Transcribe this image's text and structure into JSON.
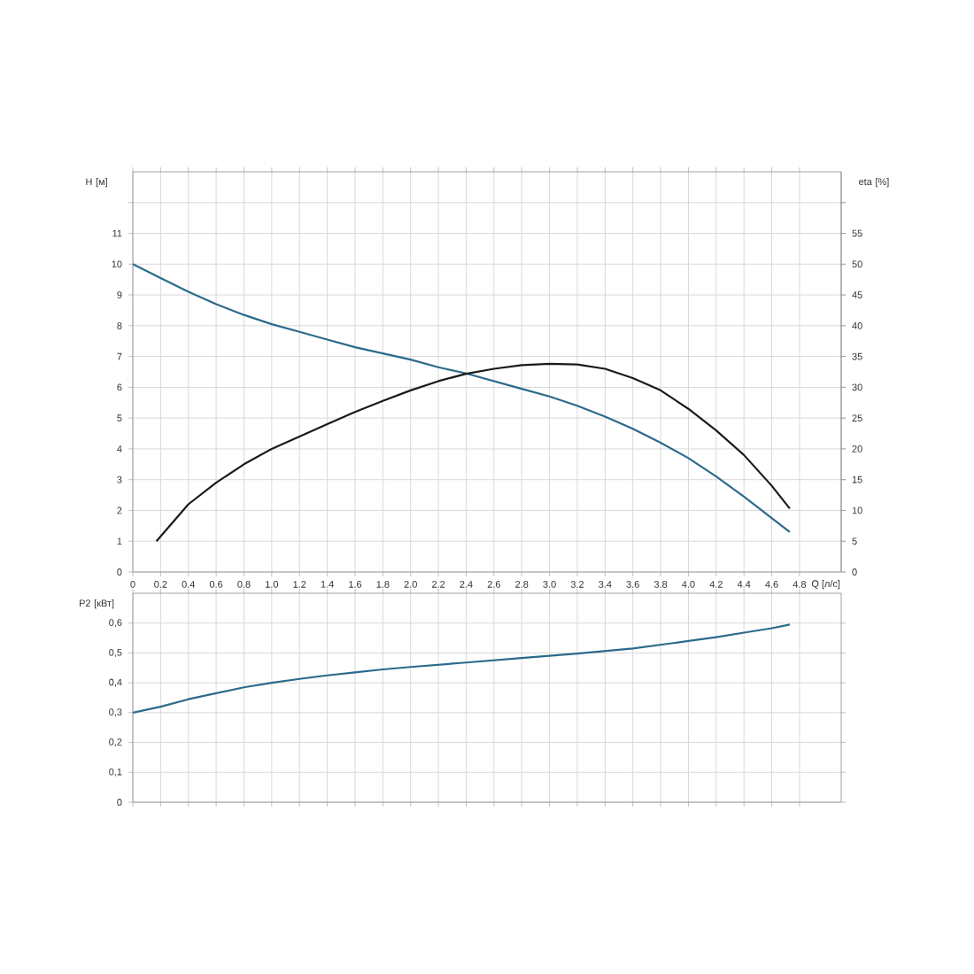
{
  "chart_data": [
    {
      "type": "line",
      "ylabel": "H [м]",
      "y2label": "eta [%]",
      "xlabel": "Q [л/с]",
      "grid": true,
      "xlim": [
        0,
        5.1
      ],
      "xticks": [
        {
          "value": 0,
          "label": "0"
        },
        0.2,
        0.4,
        0.6,
        0.8,
        {
          "value": 1,
          "label": "1.0"
        },
        1.2,
        1.4,
        1.6,
        1.8,
        {
          "value": 2,
          "label": "2.0"
        },
        2.2,
        2.4,
        2.6,
        2.8,
        {
          "value": 3,
          "label": "3.0"
        },
        3.2,
        3.4,
        3.6,
        3.8,
        {
          "value": 4,
          "label": "4.0"
        },
        4.2,
        4.4,
        4.6,
        4.8
      ],
      "ylim": [
        0,
        13
      ],
      "yticks": [
        0,
        1,
        2,
        3,
        4,
        5,
        6,
        7,
        8,
        9,
        10,
        11,
        {
          "value": 12,
          "label": null
        }
      ],
      "y2lim": [
        0,
        65
      ],
      "y2ticks": [
        0,
        5,
        10,
        15,
        20,
        25,
        30,
        35,
        40,
        45,
        50,
        55,
        {
          "value": 60,
          "label": null
        }
      ],
      "series": [
        {
          "color": "#2b6a8c",
          "x": [
            0,
            0.2,
            0.4,
            0.6,
            0.8,
            1.0,
            1.2,
            1.4,
            1.6,
            1.8,
            2.0,
            2.2,
            2.4,
            2.6,
            2.8,
            3.0,
            3.2,
            3.4,
            3.6,
            3.8,
            4.0,
            4.2,
            4.4,
            4.6,
            4.73
          ],
          "values": [
            10,
            9.55,
            9.1,
            8.7,
            8.35,
            8.05,
            7.8,
            7.55,
            7.3,
            7.1,
            6.9,
            6.65,
            6.45,
            6.2,
            5.95,
            5.7,
            5.4,
            5.05,
            4.65,
            4.2,
            3.7,
            3.1,
            2.45,
            1.75,
            1.3
          ]
        },
        {
          "color": "#1a1a1a",
          "axis": "y2",
          "x": [
            0.17,
            0.4,
            0.6,
            0.8,
            1.0,
            1.2,
            1.4,
            1.6,
            1.8,
            2.0,
            2.2,
            2.4,
            2.6,
            2.8,
            3.0,
            3.2,
            3.4,
            3.6,
            3.8,
            4.0,
            4.2,
            4.4,
            4.6,
            4.73
          ],
          "values": [
            5,
            11,
            14.5,
            17.5,
            20,
            22,
            24,
            26,
            27.8,
            29.5,
            31,
            32.2,
            33,
            33.6,
            33.8,
            33.7,
            33,
            31.5,
            29.5,
            26.5,
            23,
            19,
            14,
            10.3
          ]
        }
      ]
    },
    {
      "type": "line",
      "ylabel": "P2 [кВт]",
      "grid": true,
      "tick_labels": "y",
      "xlim": [
        0,
        5.1
      ],
      "xticks": [
        0,
        0.2,
        0.4,
        0.6,
        0.8,
        1,
        1.2,
        1.4,
        1.6,
        1.8,
        2,
        2.2,
        2.4,
        2.6,
        2.8,
        3,
        3.2,
        3.4,
        3.6,
        3.8,
        4,
        4.2,
        4.4,
        4.6,
        4.8
      ],
      "ylim": [
        0,
        0.7
      ],
      "yticks": [
        0,
        {
          "value": 0.1,
          "label": "0,1"
        },
        {
          "value": 0.2,
          "label": "0,2"
        },
        {
          "value": 0.3,
          "label": "0,3"
        },
        {
          "value": 0.4,
          "label": "0,4"
        },
        {
          "value": 0.5,
          "label": "0,5"
        },
        {
          "value": 0.6,
          "label": "0,6"
        }
      ],
      "series": [
        {
          "color": "#2b6a8c",
          "x": [
            0,
            0.2,
            0.4,
            0.6,
            0.8,
            1.0,
            1.2,
            1.4,
            1.6,
            1.8,
            2.0,
            2.4,
            2.8,
            3.2,
            3.6,
            4.0,
            4.2,
            4.4,
            4.6,
            4.73
          ],
          "values": [
            0.3,
            0.32,
            0.345,
            0.365,
            0.385,
            0.4,
            0.413,
            0.425,
            0.435,
            0.445,
            0.453,
            0.468,
            0.483,
            0.498,
            0.515,
            0.54,
            0.553,
            0.568,
            0.583,
            0.595
          ]
        }
      ]
    }
  ]
}
